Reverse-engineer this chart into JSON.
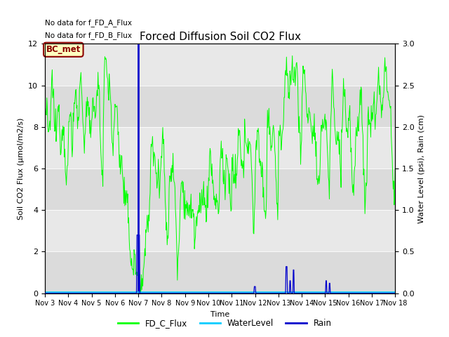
{
  "title": "Forced Diffusion Soil CO2 Flux",
  "xlabel": "Time",
  "ylabel_left": "Soil CO2 Flux (μmol/m2/s)",
  "ylabel_right": "Water Level (psi), Rain (cm)",
  "no_data_text_1": "No data for f_FD_A_Flux",
  "no_data_text_2": "No data for f_FD_B_Flux",
  "bc_met_label": "BC_met",
  "legend_entries": [
    "FD_C_Flux",
    "WaterLevel",
    "Rain"
  ],
  "legend_colors": [
    "#00ff00",
    "#00ccff",
    "#0000cc"
  ],
  "flux_color": "#00ff00",
  "water_color": "#00ccff",
  "rain_color": "#0000cc",
  "bg_color": "#e8e8e8",
  "ylim_left": [
    0,
    12
  ],
  "ylim_right": [
    0,
    3.0
  ],
  "xlim": [
    3,
    18
  ],
  "xtick_positions": [
    3,
    4,
    5,
    6,
    7,
    8,
    9,
    10,
    11,
    12,
    13,
    14,
    15,
    16,
    17,
    18
  ],
  "xtick_labels": [
    "Nov 3",
    "Nov 4",
    "Nov 5",
    "Nov 6",
    "Nov 7",
    "Nov 8",
    "Nov 9",
    "Nov 10",
    "Nov 11",
    "Nov 12",
    "Nov 13",
    "Nov 14",
    "Nov 15",
    "Nov 16",
    "Nov 17",
    "Nov 18"
  ],
  "yticks_left": [
    0,
    2,
    4,
    6,
    8,
    10,
    12
  ],
  "yticks_right": [
    0.0,
    0.5,
    1.0,
    1.5,
    2.0,
    2.5,
    3.0
  ],
  "vertical_line_day": 7,
  "vertical_line_color": "#0000cc",
  "figsize": [
    6.4,
    4.8
  ],
  "dpi": 100
}
